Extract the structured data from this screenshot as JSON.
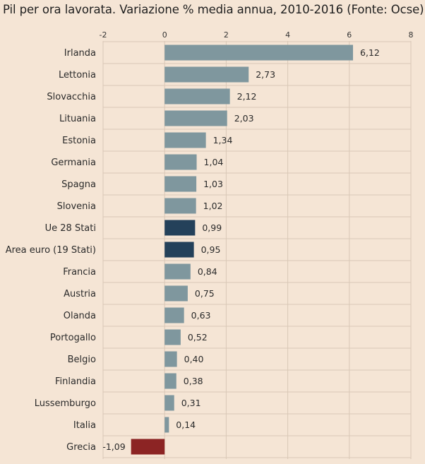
{
  "chart_data": {
    "type": "bar",
    "orientation": "horizontal",
    "title": "Pil per ora lavorata. Variazione % media annua, 2010-2016 (Fonte: Ocse)",
    "xlim": [
      -2,
      8
    ],
    "xticks": [
      -2,
      0,
      2,
      4,
      6,
      8
    ],
    "x_tick_labels": [
      "-2",
      "0",
      "2",
      "4",
      "6",
      "8"
    ],
    "grid": true,
    "categories": [
      "Irlanda",
      "Lettonia",
      "Slovacchia",
      "Lituania",
      "Estonia",
      "Germania",
      "Spagna",
      "Slovenia",
      "Ue 28 Stati",
      "Area euro (19 Stati)",
      "Francia",
      "Austria",
      "Olanda",
      "Portogallo",
      "Belgio",
      "Finlandia",
      "Lussemburgo",
      "Italia",
      "Grecia"
    ],
    "values": [
      6.12,
      2.73,
      2.12,
      2.03,
      1.34,
      1.04,
      1.03,
      1.02,
      0.99,
      0.95,
      0.84,
      0.75,
      0.63,
      0.52,
      0.4,
      0.38,
      0.31,
      0.14,
      -1.09
    ],
    "value_labels": [
      "6,12",
      "2,73",
      "2,12",
      "2,03",
      "1,34",
      "1,04",
      "1,03",
      "1,02",
      "0,99",
      "0,95",
      "0,84",
      "0,75",
      "0,63",
      "0,52",
      "0,40",
      "0,38",
      "0,31",
      "0,14",
      "-1,09"
    ],
    "colors": {
      "default": "#7f979e",
      "aggregate": "#24415a",
      "negative": "#8c2424",
      "grid": "#d9c8b6",
      "background": "#f5e5d5"
    },
    "highlight": {
      "Ue 28 Stati": "aggregate",
      "Area euro (19 Stati)": "aggregate",
      "Grecia": "negative"
    }
  }
}
